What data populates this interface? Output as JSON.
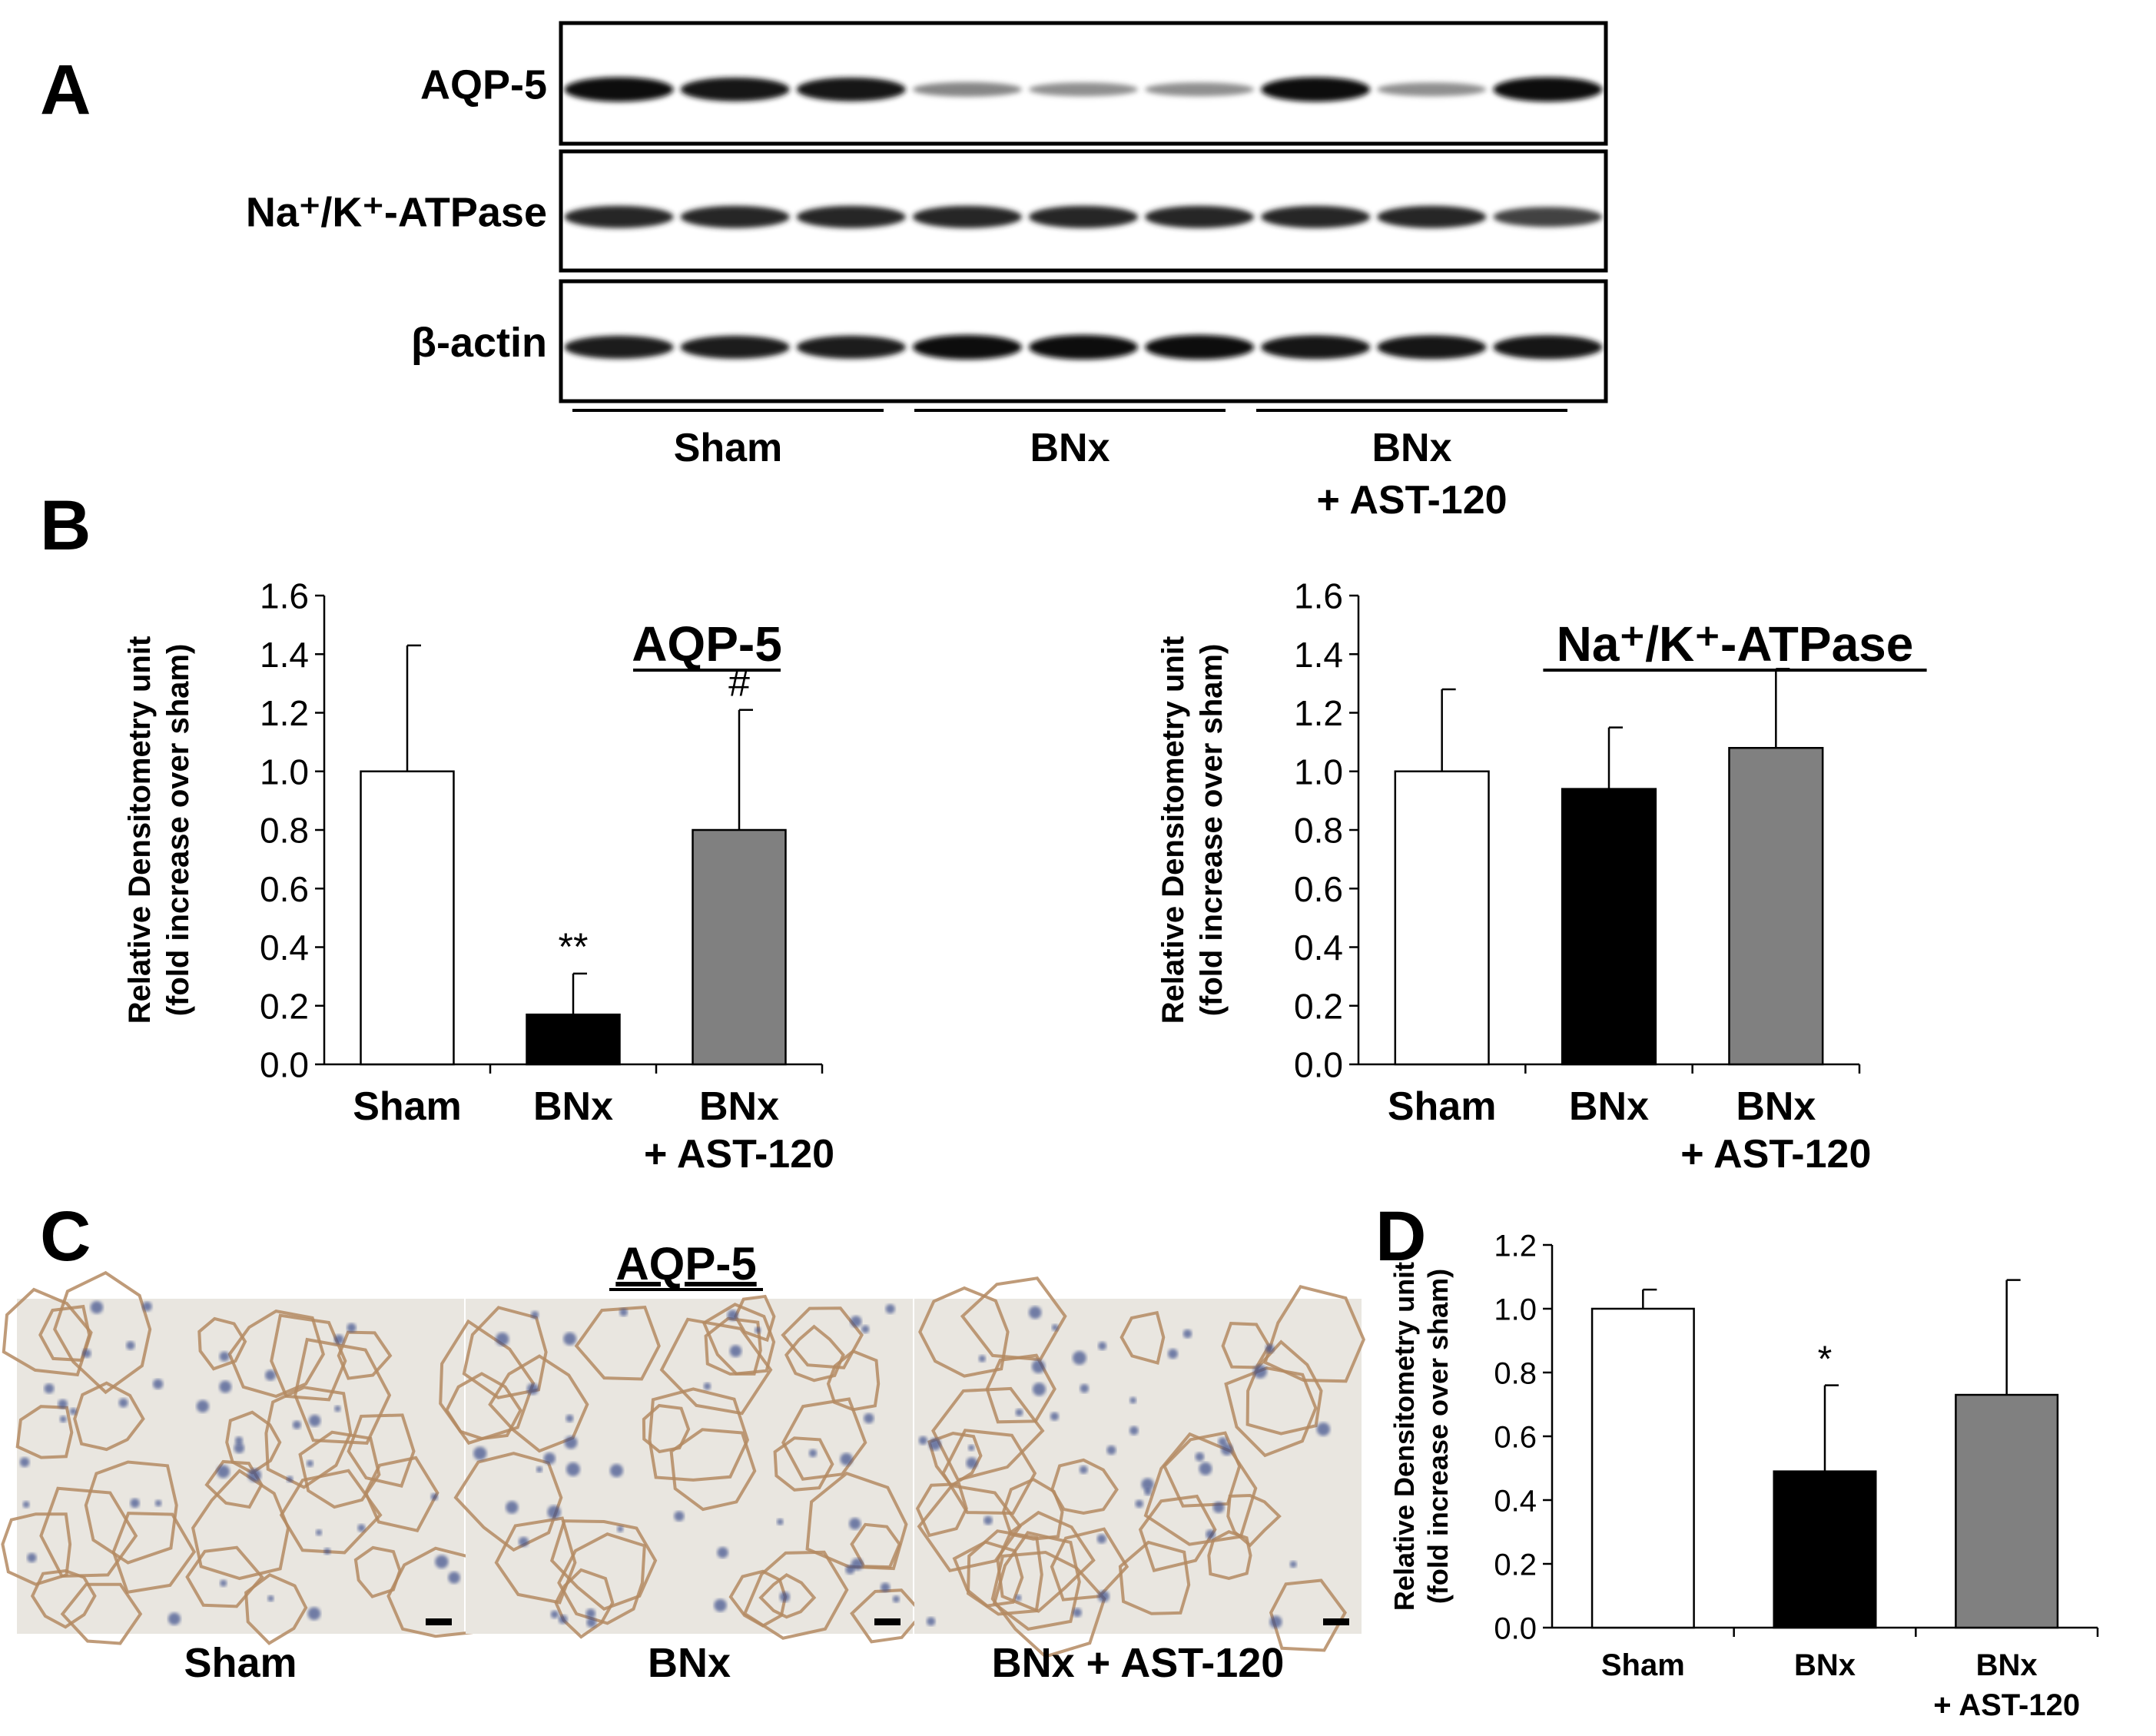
{
  "panel_labels": {
    "a": "A",
    "b": "B",
    "c": "C",
    "d": "D"
  },
  "blot": {
    "proteins": [
      "AQP-5",
      "Na⁺/K⁺-ATPase",
      "β-actin"
    ],
    "band_intensity": {
      "AQP-5": [
        1.0,
        0.95,
        0.95,
        0.35,
        0.3,
        0.3,
        1.0,
        0.3,
        1.0
      ],
      "Na⁺/K⁺-ATPase": [
        0.85,
        0.85,
        0.85,
        0.85,
        0.85,
        0.85,
        0.85,
        0.85,
        0.7
      ],
      "β-actin": [
        0.9,
        0.9,
        0.9,
        1.0,
        1.0,
        1.0,
        0.95,
        0.95,
        0.95
      ]
    },
    "group_line1": [
      "Sham",
      "BNx",
      "BNx"
    ],
    "group_line2": [
      "",
      "",
      "+ AST-120"
    ]
  },
  "histology": {
    "title": "AQP-5",
    "captions": [
      "Sham",
      "BNx",
      "BNx + AST-120"
    ]
  },
  "colors": {
    "sham": "#ffffff",
    "bnx": "#000000",
    "ast": "#808080"
  },
  "chart_data": [
    {
      "type": "bar",
      "title": "AQP-5",
      "ylabel": [
        "Relative Densitometry unit",
        "(fold increase over sham)"
      ],
      "categories": [
        "Sham",
        "BNx",
        "BNx\n+ AST-120"
      ],
      "values": [
        1.0,
        0.17,
        0.8
      ],
      "errors": [
        0.43,
        0.14,
        0.41
      ],
      "annotations": [
        "",
        "**",
        "#"
      ],
      "ylim": [
        0,
        1.6
      ],
      "yticks": [
        "0.0",
        "0.2",
        "0.4",
        "0.6",
        "0.8",
        "1.0",
        "1.2",
        "1.4",
        "1.6"
      ],
      "grid": false
    },
    {
      "type": "bar",
      "title": "Na⁺/K⁺-ATPase",
      "ylabel": [
        "Relative Densitometry unit",
        "(fold increase over sham)"
      ],
      "categories": [
        "Sham",
        "BNx",
        "BNx\n+ AST-120"
      ],
      "values": [
        1.0,
        0.94,
        1.08
      ],
      "errors": [
        0.28,
        0.21,
        0.27
      ],
      "annotations": [
        "",
        "",
        ""
      ],
      "ylim": [
        0,
        1.6
      ],
      "yticks": [
        "0.0",
        "0.2",
        "0.4",
        "0.6",
        "0.8",
        "1.0",
        "1.2",
        "1.4",
        "1.6"
      ],
      "grid": false
    },
    {
      "type": "bar",
      "title": "",
      "ylabel": [
        "Relative Densitometry unit",
        "(fold increase over sham)"
      ],
      "categories": [
        "Sham",
        "BNx",
        "BNx\n+ AST-120"
      ],
      "values": [
        1.0,
        0.49,
        0.73
      ],
      "errors": [
        0.06,
        0.27,
        0.36
      ],
      "annotations": [
        "",
        "*",
        ""
      ],
      "ylim": [
        0,
        1.2
      ],
      "yticks": [
        "0.0",
        "0.2",
        "0.4",
        "0.6",
        "0.8",
        "1.0",
        "1.2"
      ],
      "grid": false
    }
  ]
}
